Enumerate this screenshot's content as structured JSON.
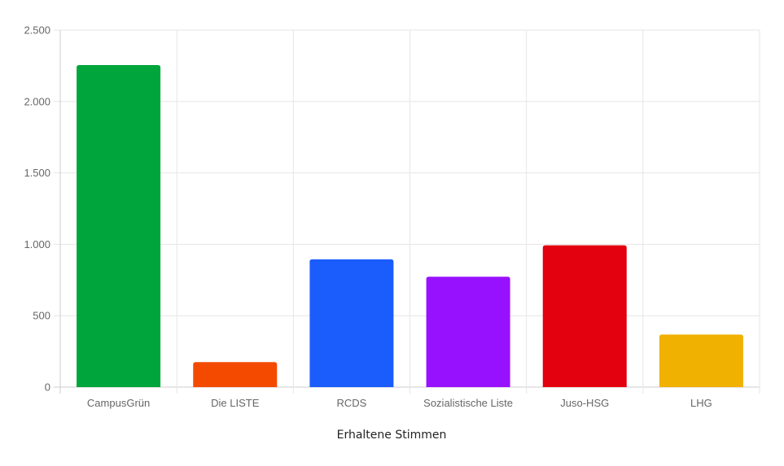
{
  "chart_data": {
    "type": "bar",
    "categories": [
      "CampusGrün",
      "Die LISTE",
      "RCDS",
      "Sozialistische Liste",
      "Juso-HSG",
      "LHG"
    ],
    "values": [
      2255,
      175,
      895,
      773,
      993,
      368
    ],
    "colors": [
      "#00a63c",
      "#f44a00",
      "#1a5dfc",
      "#9811ff",
      "#e3000f",
      "#f0b100"
    ],
    "xlabel": "Erhaltene Stimmen",
    "ylabel": "",
    "ylim": [
      0,
      2500
    ],
    "yticks": [
      0,
      500,
      1000,
      1500,
      2000,
      2500
    ],
    "ytick_labels": [
      "0",
      "500",
      "1.000",
      "1.500",
      "2.000",
      "2.500"
    ],
    "grid": true,
    "legend": "none"
  }
}
